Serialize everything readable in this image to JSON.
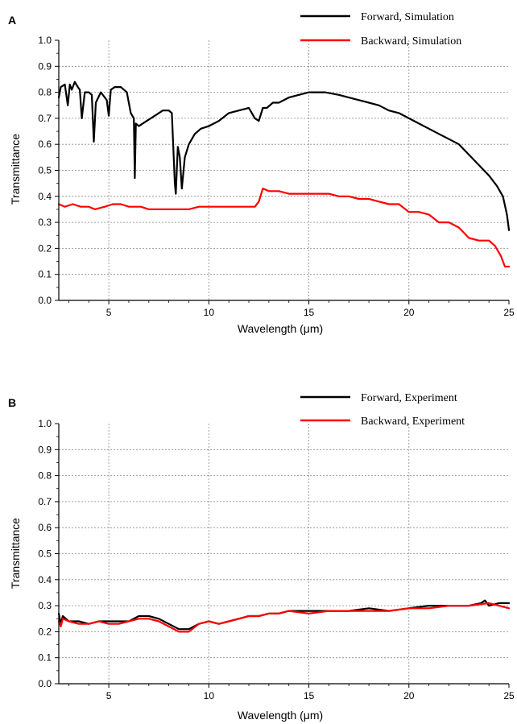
{
  "chart_data": [
    {
      "panel": "A",
      "type": "line",
      "xlabel": "Wavelength (μm)",
      "ylabel": "Transmittance",
      "xlim": [
        2.5,
        25
      ],
      "ylim": [
        0,
        1
      ],
      "xticks": [
        5,
        10,
        15,
        20,
        25
      ],
      "yticks": [
        0.0,
        0.1,
        0.2,
        0.3,
        0.4,
        0.5,
        0.6,
        0.7,
        0.8,
        0.9,
        1.0
      ],
      "ytick_labels": [
        "0.0",
        "0.1",
        "0.2",
        "0.3",
        "0.4",
        "0.5",
        "0.6",
        "0.7",
        "0.8",
        "0.9",
        "1.0"
      ],
      "grid": true,
      "legend_position": "top-right",
      "series": [
        {
          "name": "Forward, Simulation",
          "color": "#000000",
          "x": [
            2.5,
            2.6,
            2.8,
            2.95,
            3.05,
            3.15,
            3.3,
            3.45,
            3.55,
            3.65,
            3.8,
            4.0,
            4.15,
            4.25,
            4.35,
            4.6,
            4.9,
            5.0,
            5.1,
            5.3,
            5.6,
            5.9,
            6.1,
            6.25,
            6.3,
            6.35,
            6.5,
            6.9,
            7.3,
            7.7,
            8.0,
            8.15,
            8.3,
            8.35,
            8.45,
            8.55,
            8.65,
            8.8,
            9.0,
            9.3,
            9.6,
            10.0,
            10.5,
            11.0,
            11.5,
            12.0,
            12.3,
            12.5,
            12.7,
            12.9,
            13.2,
            13.5,
            14.0,
            14.5,
            15.0,
            15.5,
            15.8,
            16.5,
            17.0,
            17.5,
            18.0,
            18.5,
            19.0,
            19.5,
            20.0,
            20.5,
            21.0,
            21.5,
            22.0,
            22.5,
            23.0,
            23.5,
            24.0,
            24.4,
            24.7,
            24.9,
            25.0
          ],
          "y": [
            0.78,
            0.82,
            0.83,
            0.75,
            0.83,
            0.81,
            0.84,
            0.82,
            0.81,
            0.7,
            0.8,
            0.8,
            0.79,
            0.61,
            0.76,
            0.8,
            0.77,
            0.71,
            0.81,
            0.82,
            0.82,
            0.8,
            0.72,
            0.7,
            0.47,
            0.68,
            0.67,
            0.69,
            0.71,
            0.73,
            0.73,
            0.72,
            0.45,
            0.41,
            0.59,
            0.55,
            0.43,
            0.55,
            0.6,
            0.64,
            0.66,
            0.67,
            0.69,
            0.72,
            0.73,
            0.74,
            0.7,
            0.69,
            0.74,
            0.74,
            0.76,
            0.76,
            0.78,
            0.79,
            0.8,
            0.8,
            0.8,
            0.79,
            0.78,
            0.77,
            0.76,
            0.75,
            0.73,
            0.72,
            0.7,
            0.68,
            0.66,
            0.64,
            0.62,
            0.6,
            0.56,
            0.52,
            0.48,
            0.44,
            0.4,
            0.33,
            0.27
          ]
        },
        {
          "name": "Backward, Simulation",
          "color": "#ff0000",
          "x": [
            2.5,
            2.8,
            3.2,
            3.6,
            4.0,
            4.3,
            4.8,
            5.2,
            5.6,
            6.0,
            6.3,
            6.6,
            7.0,
            7.5,
            8.0,
            8.5,
            9.0,
            9.5,
            10.0,
            10.5,
            11.0,
            11.5,
            12.0,
            12.3,
            12.5,
            12.7,
            13.0,
            13.5,
            14.0,
            14.5,
            15.0,
            15.5,
            16.0,
            16.5,
            17.0,
            17.5,
            18.0,
            18.5,
            19.0,
            19.5,
            20.0,
            20.5,
            21.0,
            21.5,
            22.0,
            22.5,
            23.0,
            23.5,
            24.0,
            24.3,
            24.6,
            24.8,
            25.0
          ],
          "y": [
            0.37,
            0.36,
            0.37,
            0.36,
            0.36,
            0.35,
            0.36,
            0.37,
            0.37,
            0.36,
            0.36,
            0.36,
            0.35,
            0.35,
            0.35,
            0.35,
            0.35,
            0.36,
            0.36,
            0.36,
            0.36,
            0.36,
            0.36,
            0.36,
            0.38,
            0.43,
            0.42,
            0.42,
            0.41,
            0.41,
            0.41,
            0.41,
            0.41,
            0.4,
            0.4,
            0.39,
            0.39,
            0.38,
            0.37,
            0.37,
            0.34,
            0.34,
            0.33,
            0.3,
            0.3,
            0.28,
            0.24,
            0.23,
            0.23,
            0.21,
            0.17,
            0.13,
            0.13
          ]
        }
      ]
    },
    {
      "panel": "B",
      "type": "line",
      "xlabel": "Wavelength (μm)",
      "ylabel": "Transmittance",
      "xlim": [
        2.5,
        25
      ],
      "ylim": [
        0,
        1
      ],
      "xticks": [
        5,
        10,
        15,
        20,
        25
      ],
      "yticks": [
        0.0,
        0.1,
        0.2,
        0.3,
        0.4,
        0.5,
        0.6,
        0.7,
        0.8,
        0.9,
        1.0
      ],
      "ytick_labels": [
        "0.0",
        "0.1",
        "0.2",
        "0.3",
        "0.4",
        "0.5",
        "0.6",
        "0.7",
        "0.8",
        "0.9",
        "1.0"
      ],
      "grid": true,
      "legend_position": "top-right",
      "series": [
        {
          "name": "Forward, Experiment",
          "color": "#000000",
          "x": [
            2.5,
            2.6,
            2.7,
            3.0,
            3.5,
            4.0,
            4.5,
            5.0,
            5.5,
            6.0,
            6.5,
            7.0,
            7.5,
            8.0,
            8.5,
            9.0,
            9.5,
            10.0,
            10.5,
            11.0,
            11.5,
            12.0,
            12.5,
            13.0,
            13.5,
            14.0,
            15.0,
            16.0,
            17.0,
            18.0,
            19.0,
            20.0,
            21.0,
            22.0,
            23.0,
            23.6,
            23.8,
            24.0,
            24.5,
            25.0
          ],
          "y": [
            0.27,
            0.23,
            0.26,
            0.24,
            0.24,
            0.23,
            0.24,
            0.24,
            0.24,
            0.24,
            0.26,
            0.26,
            0.25,
            0.23,
            0.21,
            0.21,
            0.23,
            0.24,
            0.23,
            0.24,
            0.25,
            0.26,
            0.26,
            0.27,
            0.27,
            0.28,
            0.28,
            0.28,
            0.28,
            0.29,
            0.28,
            0.29,
            0.3,
            0.3,
            0.3,
            0.31,
            0.32,
            0.3,
            0.31,
            0.31
          ]
        },
        {
          "name": "Backward, Experiment",
          "color": "#ff0000",
          "x": [
            2.5,
            2.6,
            2.7,
            3.0,
            3.5,
            4.0,
            4.5,
            5.0,
            5.5,
            6.0,
            6.5,
            7.0,
            7.5,
            8.0,
            8.5,
            9.0,
            9.5,
            10.0,
            10.5,
            11.0,
            11.5,
            12.0,
            12.5,
            13.0,
            13.5,
            14.0,
            15.0,
            16.0,
            17.0,
            18.0,
            19.0,
            20.0,
            21.0,
            22.0,
            23.0,
            24.0,
            24.5,
            25.0
          ],
          "y": [
            0.24,
            0.22,
            0.25,
            0.24,
            0.23,
            0.23,
            0.24,
            0.23,
            0.23,
            0.24,
            0.25,
            0.25,
            0.24,
            0.22,
            0.2,
            0.2,
            0.23,
            0.24,
            0.23,
            0.24,
            0.25,
            0.26,
            0.26,
            0.27,
            0.27,
            0.28,
            0.27,
            0.28,
            0.28,
            0.28,
            0.28,
            0.29,
            0.29,
            0.3,
            0.3,
            0.31,
            0.3,
            0.29
          ]
        }
      ]
    }
  ]
}
